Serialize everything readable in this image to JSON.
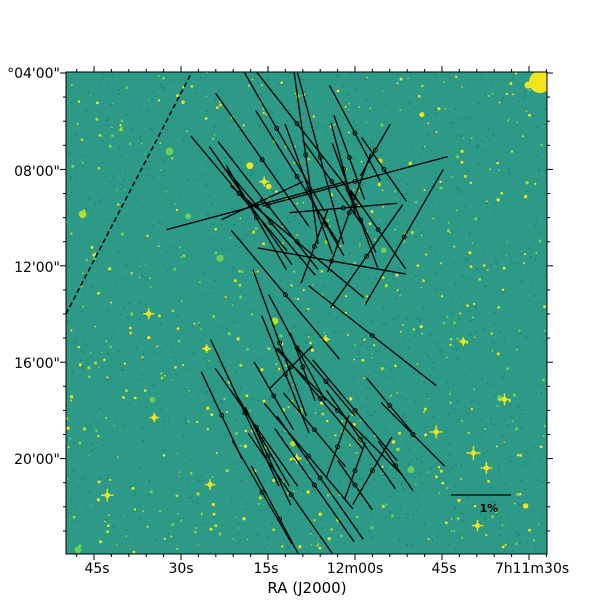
{
  "chart_data": {
    "type": "scatter",
    "subtype": "polarization-vector-map-on-image",
    "xlabel": "RA (J2000)",
    "x_ticks": [
      "45s",
      "30s",
      "15s",
      "12m00s",
      "45s",
      "7h11m30s"
    ],
    "y_ticks": [
      "°04'00\"",
      "08'00\"",
      "12'00\"",
      "16'00\"",
      "20'00\""
    ],
    "y_tick_values_arcmin": [
      4,
      8,
      12,
      16,
      20
    ],
    "ylim_arcmin": [
      3.9,
      24.0
    ],
    "scale_bar_label": "1%",
    "colors": {
      "background": "#2c9a86",
      "stars": "#f2e51e",
      "vectors": "#000000",
      "frame": "#000000"
    },
    "vectors": [
      {
        "ra_s": 10.0,
        "dec": 6.1,
        "pa": 38,
        "pol": 3.6
      },
      {
        "ra_s": 13.5,
        "dec": 6.3,
        "pa": 30,
        "pol": 3.2
      },
      {
        "ra_s": 8.5,
        "dec": 7.4,
        "pa": 8,
        "pol": 3.0
      },
      {
        "ra_s": 6.0,
        "dec": 7.5,
        "pa": 15,
        "pol": 3.0
      },
      {
        "ra_s": 16.0,
        "dec": 7.6,
        "pa": 35,
        "pol": 2.7
      },
      {
        "ra_s": 15.0,
        "dec": 9.5,
        "pa": 38,
        "pol": 2.7
      },
      {
        "ra_s": 10.0,
        "dec": 8.3,
        "pa": 32,
        "pol": 2.6
      },
      {
        "ra_s": 8.0,
        "dec": 8.8,
        "pa": 20,
        "pol": 2.3
      },
      {
        "ra_s": 20.0,
        "dec": 9.0,
        "pa": 40,
        "pol": 2.5
      },
      {
        "ra_s": 18.0,
        "dec": 9.5,
        "pa": 35,
        "pol": 2.4
      },
      {
        "ra_s": 17.0,
        "dec": 10.0,
        "pa": 30,
        "pol": 2.0
      },
      {
        "ra_s": 14.5,
        "dec": 10.2,
        "pa": 40,
        "pol": 2.3
      },
      {
        "ra_s": 5.0,
        "dec": 10.3,
        "pa": 30,
        "pol": 1.2
      },
      {
        "ra_s": 4.0,
        "dec": 8.5,
        "pa": 35,
        "pol": 1.7
      },
      {
        "ra_s": 1.0,
        "dec": 7.5,
        "pa": 20,
        "pol": 1.5
      },
      {
        "ra_s": 0.0,
        "dec": 6.5,
        "pa": 28,
        "pol": 1.8
      },
      {
        "ra_s": 2.0,
        "dec": 8.0,
        "pa": 15,
        "pol": 1.6
      },
      {
        "ra_s": -5.0,
        "dec": 8.0,
        "pa": 35,
        "pol": 1.3
      },
      {
        "ra_s": -4.0,
        "dec": 10.5,
        "pa": 35,
        "pol": 1.6
      },
      {
        "ra_s": -1.0,
        "dec": 10.1,
        "pa": 25,
        "pol": 1.2
      },
      {
        "ra_s": 0.0,
        "dec": 9.5,
        "pa": 20,
        "pol": 2.2
      },
      {
        "ra_s": 10.0,
        "dec": 11.0,
        "pa": 50,
        "pol": 2.9
      },
      {
        "ra_s": 4.0,
        "dec": 11.8,
        "pa": 80,
        "pol": 2.5
      },
      {
        "ra_s": -2.0,
        "dec": 11.6,
        "pa": 145,
        "pol": 2.1
      },
      {
        "ra_s": 1.0,
        "dec": 9.8,
        "pa": 160,
        "pol": 2.1
      },
      {
        "ra_s": 2.0,
        "dec": 9.6,
        "pa": 95,
        "pol": 1.8
      },
      {
        "ra_s": 16.0,
        "dec": 9.3,
        "pa": 115,
        "pol": 1.5
      },
      {
        "ra_s": 7.0,
        "dec": 11.2,
        "pa": 160,
        "pol": 1.3
      },
      {
        "ra_s": 0.0,
        "dec": 8.5,
        "pa": 105,
        "pol": 3.2
      },
      {
        "ra_s": 17.0,
        "dec": 9.5,
        "pa": 105,
        "pol": 3.1
      },
      {
        "ra_s": -8.5,
        "dec": 10.8,
        "pa": 150,
        "pol": 2.6
      },
      {
        "ra_s": -3.5,
        "dec": 7.2,
        "pa": 150,
        "pol": 1.0
      },
      {
        "ra_s": 12.0,
        "dec": 13.2,
        "pa": 40,
        "pol": 2.8
      },
      {
        "ra_s": -3.0,
        "dec": 14.9,
        "pa": 52,
        "pol": 2.7
      },
      {
        "ra_s": 10.0,
        "dec": 15.4,
        "pa": 28,
        "pol": 2.0
      },
      {
        "ra_s": 13.0,
        "dec": 15.2,
        "pa": 20,
        "pol": 2.6
      },
      {
        "ra_s": 11.0,
        "dec": 16.2,
        "pa": 135,
        "pol": 1.0
      },
      {
        "ra_s": 12.0,
        "dec": 16.5,
        "pa": 22,
        "pol": 2.1
      },
      {
        "ra_s": 23.0,
        "dec": 18.2,
        "pa": 25,
        "pol": 1.6
      },
      {
        "ra_s": 19.0,
        "dec": 18.1,
        "pa": 25,
        "pol": 2.7
      },
      {
        "ra_s": 17.0,
        "dec": 18.7,
        "pa": 35,
        "pol": 2.4
      },
      {
        "ra_s": 16.0,
        "dec": 19.2,
        "pa": 30,
        "pol": 1.8
      },
      {
        "ra_s": 15.0,
        "dec": 19.9,
        "pa": 25,
        "pol": 1.8
      },
      {
        "ra_s": 6.0,
        "dec": 17.5,
        "pa": 40,
        "pol": 2.2
      },
      {
        "ra_s": 3.0,
        "dec": 18.0,
        "pa": 45,
        "pol": 3.0
      },
      {
        "ra_s": 0.0,
        "dec": 18.0,
        "pa": 40,
        "pol": 2.2
      },
      {
        "ra_s": -1.0,
        "dec": 19.2,
        "pa": 35,
        "pol": 2.0
      },
      {
        "ra_s": -6.0,
        "dec": 17.8,
        "pa": 40,
        "pol": 1.2
      },
      {
        "ra_s": -10.0,
        "dec": 19.0,
        "pa": 45,
        "pol": 1.5
      },
      {
        "ra_s": 8.0,
        "dec": 19.9,
        "pa": 40,
        "pol": 2.3
      },
      {
        "ra_s": 6.0,
        "dec": 20.8,
        "pa": 35,
        "pol": 2.5
      },
      {
        "ra_s": 3.0,
        "dec": 19.5,
        "pa": 160,
        "pol": 1.1
      },
      {
        "ra_s": 0.0,
        "dec": 20.5,
        "pa": 160,
        "pol": 1.0
      },
      {
        "ra_s": -3.0,
        "dec": 20.5,
        "pa": 150,
        "pol": 1.3
      },
      {
        "ra_s": 0.0,
        "dec": 21.1,
        "pa": 35,
        "pol": 1.0
      },
      {
        "ra_s": -7.0,
        "dec": 20.3,
        "pa": 35,
        "pol": 1.0
      },
      {
        "ra_s": 11.0,
        "dec": 21.5,
        "pa": 35,
        "pol": 2.5
      },
      {
        "ra_s": 7.0,
        "dec": 21.1,
        "pa": 35,
        "pol": 2.3
      },
      {
        "ra_s": 16.0,
        "dec": 21.4,
        "pa": 30,
        "pol": 2.0
      },
      {
        "ra_s": 13.0,
        "dec": 22.5,
        "pa": 28,
        "pol": 2.0
      },
      {
        "ra_s": 5.0,
        "dec": 16.8,
        "pa": 40,
        "pol": 1.5
      },
      {
        "ra_s": 9.0,
        "dec": 16.2,
        "pa": 20,
        "pol": 1.2
      },
      {
        "ra_s": 7.0,
        "dec": 18.8,
        "pa": 40,
        "pol": 1.6
      },
      {
        "ra_s": 14.0,
        "dec": 17.4,
        "pa": 30,
        "pol": 1.3
      }
    ]
  }
}
